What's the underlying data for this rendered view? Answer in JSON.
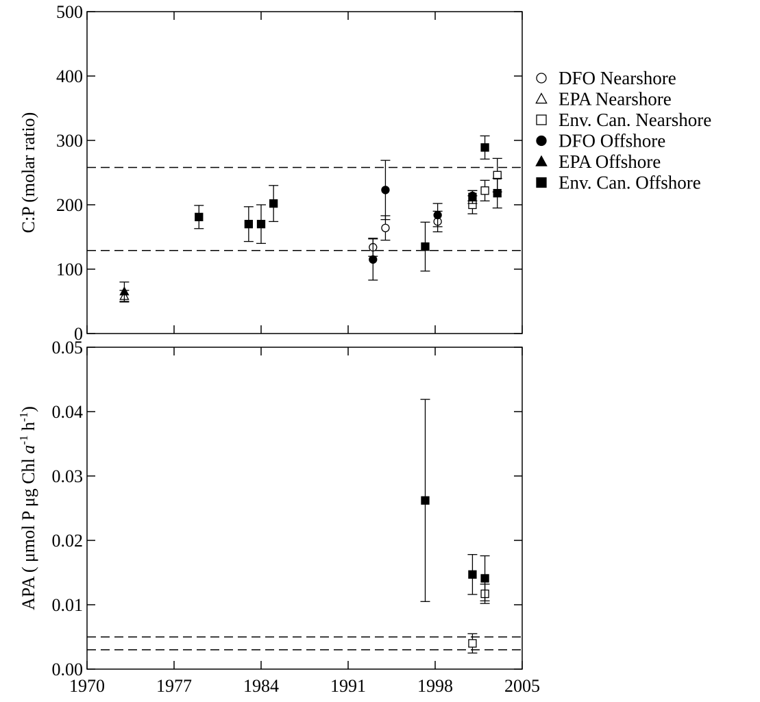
{
  "chart_data": [
    {
      "type": "scatter",
      "title": "",
      "xlabel": "",
      "ylabel": "C:P (molar ratio)",
      "xlim": [
        1970,
        2005
      ],
      "ylim": [
        0,
        500
      ],
      "yticks": [
        0,
        100,
        200,
        300,
        400,
        500
      ],
      "ytick_labels": [
        "0",
        "100",
        "200",
        "300",
        "400",
        "500"
      ],
      "reference_lines": [
        129,
        258
      ],
      "series": [
        {
          "name": "DFO Nearshore",
          "marker": "circle-open",
          "x": [
            1993,
            1994,
            1998.2
          ],
          "y": [
            134,
            164,
            174
          ],
          "err_low": [
            14,
            19,
            16
          ],
          "err_high": [
            14,
            19,
            16
          ]
        },
        {
          "name": "EPA Nearshore",
          "marker": "triangle-open",
          "x": [
            1973
          ],
          "y": [
            58
          ],
          "err_low": [
            9
          ],
          "err_high": [
            9
          ]
        },
        {
          "name": "Env. Can. Nearshore",
          "marker": "square-open",
          "x": [
            2001,
            2002,
            2003
          ],
          "y": [
            200,
            222,
            246
          ],
          "err_low": [
            14,
            16,
            26
          ],
          "err_high": [
            14,
            16,
            26
          ]
        },
        {
          "name": "DFO Offshore",
          "marker": "circle-filled",
          "x": [
            1993,
            1994,
            1998.2,
            2001
          ],
          "y": [
            115,
            223,
            184,
            214
          ],
          "err_low": [
            32,
            46,
            18,
            8
          ],
          "err_high": [
            32,
            46,
            18,
            8
          ]
        },
        {
          "name": "EPA Offshore",
          "marker": "triangle-filled",
          "x": [
            1973
          ],
          "y": [
            65
          ],
          "err_low": [
            15
          ],
          "err_high": [
            15
          ]
        },
        {
          "name": "Env. Can. Offshore",
          "marker": "square-filled",
          "x": [
            1979,
            1983,
            1984,
            1985,
            1997.2,
            2001,
            2002,
            2003
          ],
          "y": [
            181,
            170,
            170,
            202,
            135,
            212,
            289,
            218
          ],
          "err_low": [
            18,
            27,
            30,
            28,
            38,
            10,
            18,
            23
          ],
          "err_high": [
            18,
            27,
            30,
            28,
            38,
            10,
            18,
            23
          ]
        }
      ],
      "legend": {
        "placement": "outside-right",
        "entries": [
          {
            "label": "DFO Nearshore",
            "marker": "circle-open"
          },
          {
            "label": "EPA Nearshore",
            "marker": "triangle-open"
          },
          {
            "label": "Env. Can. Nearshore",
            "marker": "square-open"
          },
          {
            "label": "DFO Offshore",
            "marker": "circle-filled"
          },
          {
            "label": "EPA Offshore",
            "marker": "triangle-filled"
          },
          {
            "label": "Env. Can. Offshore",
            "marker": "square-filled"
          }
        ]
      }
    },
    {
      "type": "scatter",
      "title": "",
      "xlabel": "",
      "ylabel_parts": [
        {
          "text": "APA (",
          "style": "normal"
        },
        {
          "text": " μmol P μg Chl ",
          "style": "normal"
        },
        {
          "text": "a",
          "style": "italic"
        },
        {
          "text": "-1",
          "style": "super"
        },
        {
          "text": " h",
          "style": "normal"
        },
        {
          "text": "-1",
          "style": "super"
        },
        {
          "text": ")",
          "style": "normal"
        }
      ],
      "xlim": [
        1970,
        2005
      ],
      "ylim": [
        0,
        0.05
      ],
      "xticks": [
        1970,
        1977,
        1984,
        1991,
        1998,
        2005
      ],
      "xtick_labels": [
        "1970",
        "1977",
        "1984",
        "1991",
        "1998",
        "2005"
      ],
      "yticks": [
        0,
        0.01,
        0.02,
        0.03,
        0.04,
        0.05
      ],
      "ytick_labels": [
        "0.00",
        "0.01",
        "0.02",
        "0.03",
        "0.04",
        "0.05"
      ],
      "reference_lines": [
        0.003,
        0.005
      ],
      "series": [
        {
          "name": "Env. Can. Nearshore",
          "marker": "square-open",
          "x": [
            2001,
            2002
          ],
          "y": [
            0.004,
            0.0117
          ],
          "err_low": [
            0.0015,
            0.0015
          ],
          "err_high": [
            0.0015,
            0.0015
          ]
        },
        {
          "name": "Env. Can. Offshore",
          "marker": "square-filled",
          "x": [
            1997.2,
            2001,
            2002
          ],
          "y": [
            0.0262,
            0.0147,
            0.0141
          ],
          "err_low": [
            0.0157,
            0.0031,
            0.0035
          ],
          "err_high": [
            0.0157,
            0.0031,
            0.0035
          ]
        }
      ]
    }
  ]
}
